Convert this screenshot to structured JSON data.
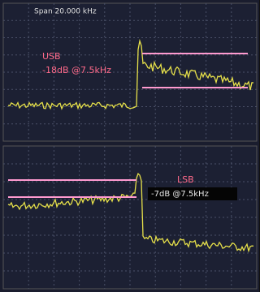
{
  "top_panel": {
    "span": "Span 20.000 kHz",
    "sideband": "USB",
    "note": "-18dB @7.5kHz"
  },
  "bottom_panel": {
    "sideband": "LSB",
    "note": "-7dB @7.5kHz"
  }
}
